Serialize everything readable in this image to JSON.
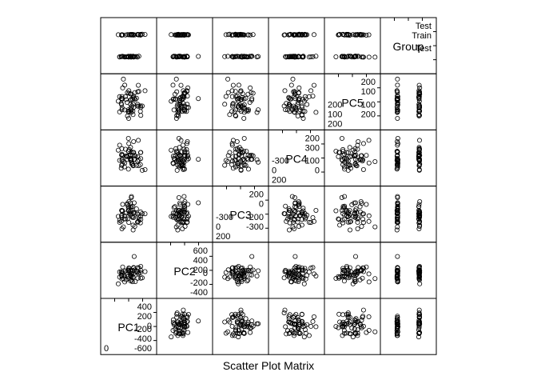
{
  "chart_data": {
    "type": "scatter",
    "subtype": "scatterplot-matrix",
    "xlabel": "Scatter Plot Matrix",
    "variables": [
      "PC1",
      "PC2",
      "PC3",
      "PC4",
      "PC5",
      "Group"
    ],
    "group_levels": [
      "Train",
      "Test"
    ],
    "axis_labels": {
      "PC1": {
        "near": [
          "400",
          "200",
          "0"
        ],
        "far": [
          "-200",
          "-400",
          "-600"
        ],
        "corner": [
          "0"
        ]
      },
      "PC2": {
        "near": [
          "600",
          "400",
          "200"
        ],
        "far": [
          "0",
          "-200",
          "-400"
        ],
        "corner": []
      },
      "PC3": {
        "near": [
          "200",
          "0"
        ],
        "far": [
          "-200",
          "-300"
        ],
        "corner": [
          "200",
          "0",
          "-300"
        ]
      },
      "PC4": {
        "near": [
          "200",
          "300"
        ],
        "far": [
          "100",
          "0"
        ],
        "corner": [
          "200",
          "0",
          "-300"
        ]
      },
      "PC5": {
        "near": [
          "200",
          "100"
        ],
        "far": [
          "100",
          "200"
        ],
        "corner": [
          "200",
          "100",
          "200"
        ]
      },
      "Group": {
        "near": [
          "Test",
          "Train"
        ],
        "far": [
          "Test"
        ],
        "corner": []
      }
    },
    "ranges": {
      "PC1": [
        -650,
        550
      ],
      "PC2": [
        -550,
        750
      ],
      "PC3": [
        -380,
        380
      ],
      "PC4": [
        -330,
        330
      ],
      "PC5": [
        -300,
        300
      ],
      "Group": [
        1,
        2
      ]
    },
    "point_shape": "open-circle",
    "grid": false,
    "n_points": 60
  }
}
